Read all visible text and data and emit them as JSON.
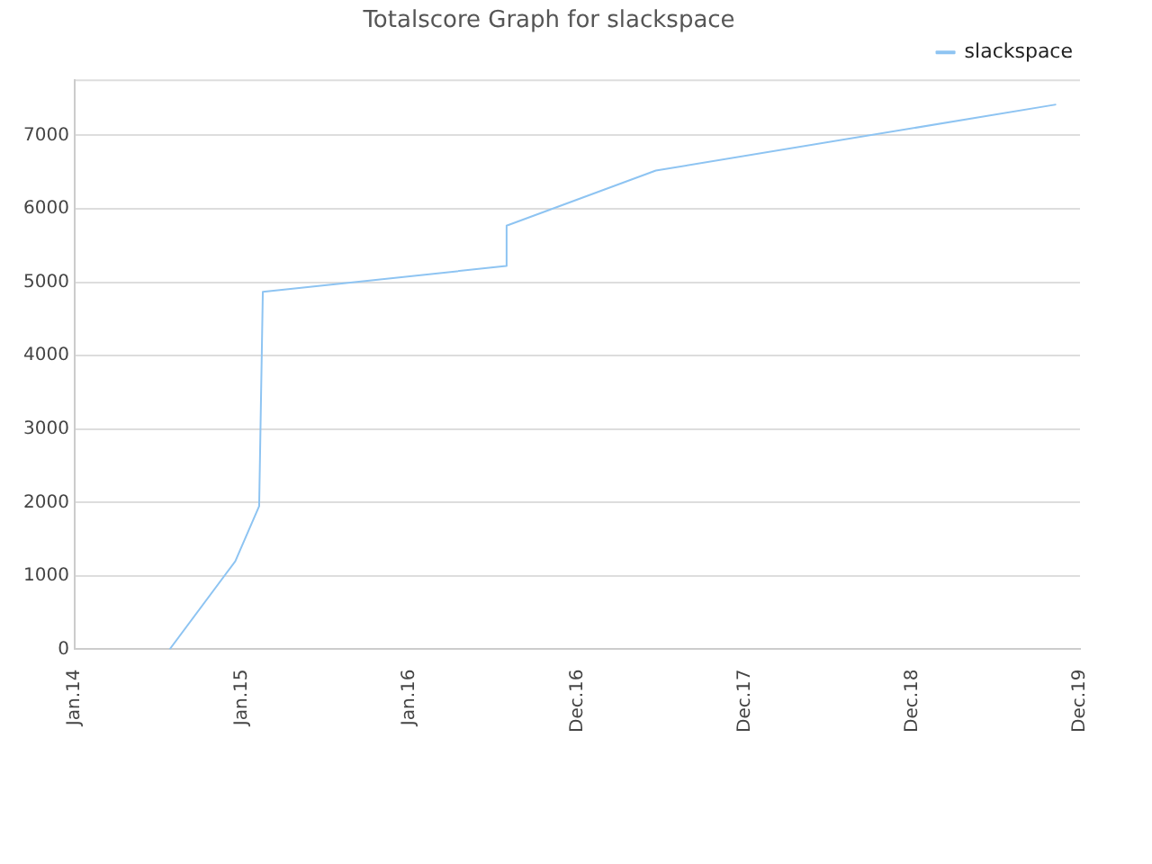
{
  "chart_data": {
    "type": "line",
    "title": "Totalscore Graph for slackspace",
    "x": [
      "2014-07-27",
      "2014-12-17",
      "2015-02-07",
      "2015-02-14",
      "2015-02-15",
      "2016-07-29",
      "2016-07-30",
      "2017-06-20",
      "2019-11-09"
    ],
    "series": [
      {
        "name": "slackspace",
        "color": "#8ec4f2",
        "values": [
          0,
          1200,
          1950,
          4500,
          4870,
          5220,
          5770,
          6520,
          7420
        ]
      }
    ],
    "xlim": [
      "2014-01-01",
      "2019-12-31"
    ],
    "xticks": [
      {
        "value": "2014-01-01",
        "label": "Jan.14"
      },
      {
        "value": "2015-01-01",
        "label": "Jan.15"
      },
      {
        "value": "2016-01-01",
        "label": "Jan.16"
      },
      {
        "value": "2016-12-31",
        "label": "Dec.16"
      },
      {
        "value": "2017-12-31",
        "label": "Dec.17"
      },
      {
        "value": "2018-12-31",
        "label": "Dec.18"
      },
      {
        "value": "2019-12-31",
        "label": "Dec.19"
      }
    ],
    "ylim": [
      0,
      7750
    ],
    "yticks": [
      0,
      1000,
      2000,
      3000,
      4000,
      5000,
      6000,
      7000
    ],
    "grid": "y",
    "legend": "top right",
    "marker": "none",
    "line_style": "solid"
  }
}
